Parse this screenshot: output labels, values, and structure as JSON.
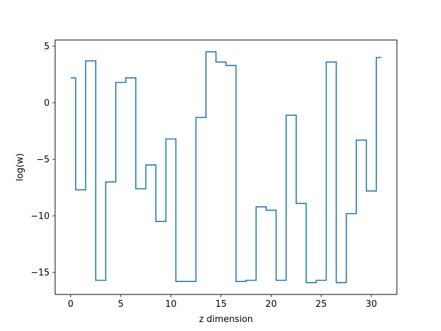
{
  "chart_data": {
    "type": "line",
    "drawstyle": "steps-mid",
    "title": "",
    "xlabel": "z dimension",
    "ylabel": "log(w)",
    "xlim": [
      -1.55,
      32.55
    ],
    "ylim": [
      -16.95,
      5.55
    ],
    "xticks": [
      0,
      5,
      10,
      15,
      20,
      25,
      30
    ],
    "yticks": [
      5,
      0,
      -5,
      -10,
      -15
    ],
    "ytick_labels": [
      "5",
      "0",
      "−5",
      "−10",
      "−15"
    ],
    "grid": false,
    "legend": "none",
    "series": [
      {
        "color": "#1f77b4",
        "x": [
          0,
          1,
          2,
          3,
          4,
          5,
          6,
          7,
          8,
          9,
          10,
          11,
          12,
          13,
          14,
          15,
          16,
          17,
          18,
          19,
          20,
          21,
          22,
          23,
          24,
          25,
          26,
          27,
          28,
          29,
          30,
          31
        ],
        "values": [
          2.2,
          -7.7,
          3.7,
          -15.7,
          -7.0,
          1.8,
          2.2,
          -7.6,
          -5.5,
          -10.5,
          -3.2,
          -15.8,
          -15.8,
          -1.3,
          4.5,
          3.6,
          3.3,
          -15.8,
          -15.7,
          -9.2,
          -9.5,
          -15.7,
          -1.1,
          -8.9,
          -15.9,
          -15.7,
          3.6,
          -15.9,
          -9.8,
          -3.3,
          -7.8,
          4.0
        ]
      }
    ]
  }
}
